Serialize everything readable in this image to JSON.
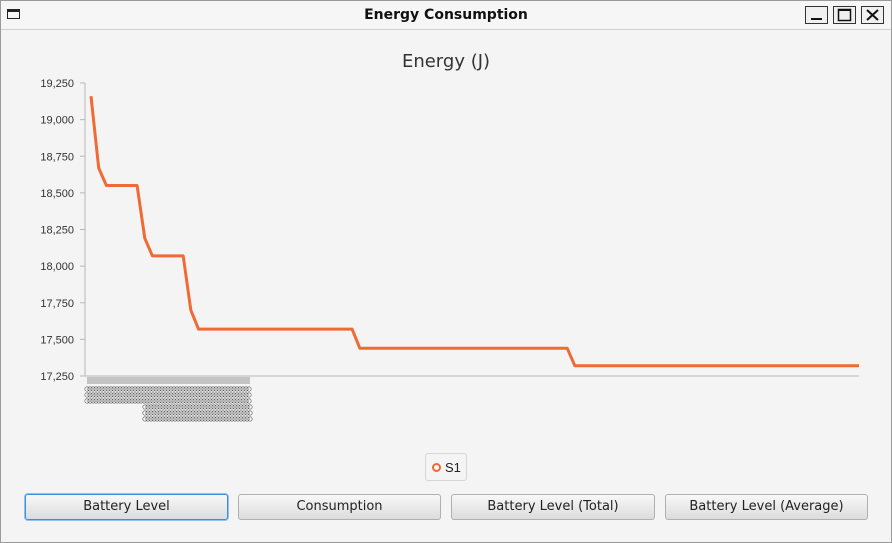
{
  "window": {
    "title": "Energy Consumption"
  },
  "controls": {
    "minimize": "minimize-icon",
    "maximize": "maximize-icon",
    "close": "close-icon"
  },
  "chart_data": {
    "type": "line",
    "title": "Energy (J)",
    "xlabel": "",
    "ylabel": "",
    "ylim": [
      17250,
      19250
    ],
    "yticks": [
      17250,
      17500,
      17750,
      18000,
      18250,
      18500,
      18750,
      19000,
      19250
    ],
    "ytick_labels": [
      "17,250",
      "17,500",
      "17,750",
      "18,000",
      "18,250",
      "18,500",
      "18,750",
      "19,000",
      "19,250"
    ],
    "grid": false,
    "legend": "bottom-center",
    "series": [
      {
        "name": "S1",
        "color": "#f06a33",
        "x": [
          0,
          1,
          2,
          6,
          7,
          8,
          12,
          13,
          14,
          34,
          35,
          62,
          63,
          100
        ],
        "values": [
          19160,
          18670,
          18550,
          18550,
          18190,
          18070,
          18070,
          17700,
          17570,
          17570,
          17440,
          17440,
          17320,
          17320
        ]
      }
    ]
  },
  "buttons": [
    {
      "label": "Battery Level",
      "focused": true
    },
    {
      "label": "Consumption",
      "focused": false
    },
    {
      "label": "Battery Level (Total)",
      "focused": false
    },
    {
      "label": "Battery Level (Average)",
      "focused": false
    }
  ]
}
